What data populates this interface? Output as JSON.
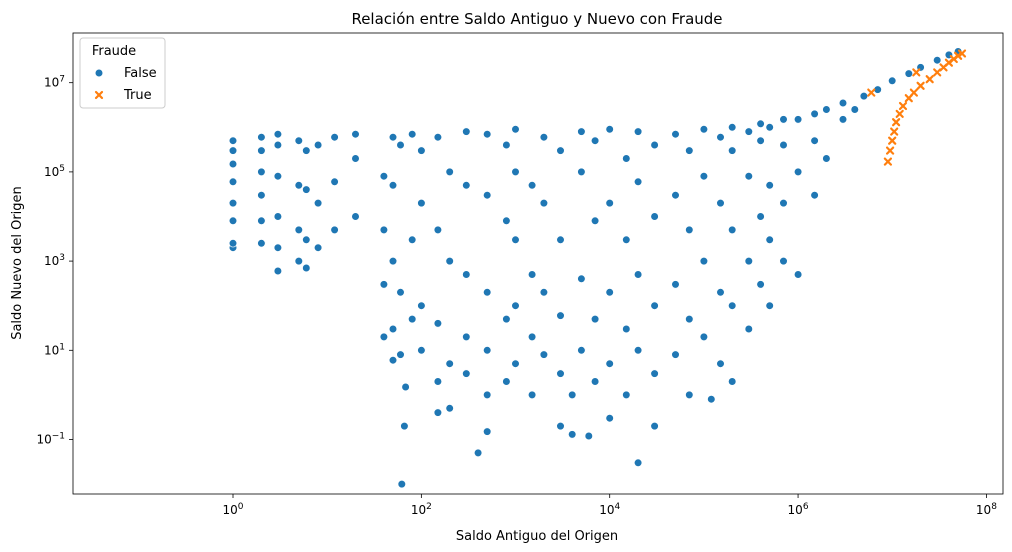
{
  "chart_data": {
    "type": "scatter",
    "title": "Relación entre Saldo Antiguo y Nuevo con Fraude",
    "xlabel": "Saldo Antiguo del Origen",
    "ylabel": "Saldo Nuevo del Origen",
    "xscale": "log",
    "yscale": "log",
    "xlim": [
      0.02,
      150000000
    ],
    "ylim": [
      0.006,
      130000000
    ],
    "xticks": [
      {
        "value": 1,
        "base": "10",
        "exp": "0"
      },
      {
        "value": 100,
        "base": "10",
        "exp": "2"
      },
      {
        "value": 10000,
        "base": "10",
        "exp": "4"
      },
      {
        "value": 1000000,
        "base": "10",
        "exp": "6"
      },
      {
        "value": 100000000,
        "base": "10",
        "exp": "8"
      }
    ],
    "yticks": [
      {
        "value": 0.1,
        "base": "10",
        "exp": "−1"
      },
      {
        "value": 10,
        "base": "10",
        "exp": "1"
      },
      {
        "value": 1000,
        "base": "10",
        "exp": "3"
      },
      {
        "value": 100000,
        "base": "10",
        "exp": "5"
      },
      {
        "value": 10000000,
        "base": "10",
        "exp": "7"
      }
    ],
    "grid": false,
    "legend": {
      "title": "Fraude",
      "placement": "top-left"
    },
    "series": [
      {
        "name": "False",
        "color": "#1f77b4",
        "marker": "circle",
        "points": [
          [
            1,
            2000
          ],
          [
            1,
            2500
          ],
          [
            1,
            8000
          ],
          [
            1,
            20000
          ],
          [
            1,
            60000
          ],
          [
            1,
            150000
          ],
          [
            1,
            300000
          ],
          [
            1,
            500000
          ],
          [
            2,
            2500
          ],
          [
            2,
            8000
          ],
          [
            2,
            30000
          ],
          [
            2,
            100000
          ],
          [
            2,
            300000
          ],
          [
            2,
            600000
          ],
          [
            3,
            600
          ],
          [
            3,
            2000
          ],
          [
            3,
            10000
          ],
          [
            3,
            80000
          ],
          [
            3,
            400000
          ],
          [
            3,
            700000
          ],
          [
            5,
            1000
          ],
          [
            5,
            5000
          ],
          [
            5,
            50000
          ],
          [
            5,
            500000
          ],
          [
            6,
            700
          ],
          [
            6,
            3000
          ],
          [
            6,
            40000
          ],
          [
            6,
            300000
          ],
          [
            8,
            2000
          ],
          [
            8,
            20000
          ],
          [
            8,
            400000
          ],
          [
            12,
            5000
          ],
          [
            12,
            60000
          ],
          [
            12,
            600000
          ],
          [
            20,
            10000
          ],
          [
            20,
            200000
          ],
          [
            20,
            700000
          ],
          [
            40,
            20
          ],
          [
            40,
            300
          ],
          [
            40,
            5000
          ],
          [
            40,
            80000
          ],
          [
            50,
            6
          ],
          [
            50,
            30
          ],
          [
            50,
            1000
          ],
          [
            50,
            50000
          ],
          [
            50,
            600000
          ],
          [
            60,
            8
          ],
          [
            60,
            200
          ],
          [
            60,
            400000
          ],
          [
            62,
            0.01
          ],
          [
            66,
            0.2
          ],
          [
            68,
            1.5
          ],
          [
            80,
            50
          ],
          [
            80,
            3000
          ],
          [
            80,
            700000
          ],
          [
            100,
            10
          ],
          [
            100,
            100
          ],
          [
            100,
            20000
          ],
          [
            100,
            300000
          ],
          [
            150,
            0.4
          ],
          [
            150,
            2
          ],
          [
            150,
            40
          ],
          [
            150,
            5000
          ],
          [
            150,
            600000
          ],
          [
            200,
            0.5
          ],
          [
            200,
            5
          ],
          [
            200,
            1000
          ],
          [
            200,
            100000
          ],
          [
            300,
            3
          ],
          [
            300,
            20
          ],
          [
            300,
            500
          ],
          [
            300,
            50000
          ],
          [
            300,
            800000
          ],
          [
            400,
            0.05
          ],
          [
            500,
            0.15
          ],
          [
            500,
            1
          ],
          [
            500,
            10
          ],
          [
            500,
            200
          ],
          [
            500,
            30000
          ],
          [
            500,
            700000
          ],
          [
            800,
            2
          ],
          [
            800,
            50
          ],
          [
            800,
            8000
          ],
          [
            800,
            400000
          ],
          [
            1000,
            5
          ],
          [
            1000,
            100
          ],
          [
            1000,
            3000
          ],
          [
            1000,
            100000
          ],
          [
            1000,
            900000
          ],
          [
            1500,
            1
          ],
          [
            1500,
            20
          ],
          [
            1500,
            500
          ],
          [
            1500,
            50000
          ],
          [
            2000,
            8
          ],
          [
            2000,
            200
          ],
          [
            2000,
            20000
          ],
          [
            2000,
            600000
          ],
          [
            3000,
            0.2
          ],
          [
            3000,
            3
          ],
          [
            3000,
            60
          ],
          [
            3000,
            3000
          ],
          [
            3000,
            300000
          ],
          [
            4000,
            0.13
          ],
          [
            4000,
            1
          ],
          [
            5000,
            10
          ],
          [
            5000,
            400
          ],
          [
            5000,
            100000
          ],
          [
            5000,
            800000
          ],
          [
            6000,
            0.12
          ],
          [
            7000,
            2
          ],
          [
            7000,
            50
          ],
          [
            7000,
            8000
          ],
          [
            7000,
            500000
          ],
          [
            10000,
            0.3
          ],
          [
            10000,
            5
          ],
          [
            10000,
            200
          ],
          [
            10000,
            20000
          ],
          [
            10000,
            900000
          ],
          [
            15000,
            1
          ],
          [
            15000,
            30
          ],
          [
            15000,
            3000
          ],
          [
            15000,
            200000
          ],
          [
            20000,
            0.03
          ],
          [
            20000,
            10
          ],
          [
            20000,
            500
          ],
          [
            20000,
            60000
          ],
          [
            20000,
            800000
          ],
          [
            30000,
            0.2
          ],
          [
            30000,
            3
          ],
          [
            30000,
            100
          ],
          [
            30000,
            10000
          ],
          [
            30000,
            400000
          ],
          [
            50000,
            8
          ],
          [
            50000,
            300
          ],
          [
            50000,
            30000
          ],
          [
            50000,
            700000
          ],
          [
            70000,
            1
          ],
          [
            70000,
            50
          ],
          [
            70000,
            5000
          ],
          [
            70000,
            300000
          ],
          [
            100000,
            20
          ],
          [
            100000,
            1000
          ],
          [
            100000,
            80000
          ],
          [
            100000,
            900000
          ],
          [
            120000,
            0.8
          ],
          [
            150000,
            5
          ],
          [
            150000,
            200
          ],
          [
            150000,
            20000
          ],
          [
            150000,
            600000
          ],
          [
            200000,
            2
          ],
          [
            200000,
            100
          ],
          [
            200000,
            5000
          ],
          [
            200000,
            300000
          ],
          [
            200000,
            1000000
          ],
          [
            300000,
            30
          ],
          [
            300000,
            1000
          ],
          [
            300000,
            80000
          ],
          [
            300000,
            800000
          ],
          [
            400000,
            300
          ],
          [
            400000,
            10000
          ],
          [
            400000,
            500000
          ],
          [
            400000,
            1200000
          ],
          [
            500000,
            100
          ],
          [
            500000,
            3000
          ],
          [
            500000,
            50000
          ],
          [
            500000,
            1000000
          ],
          [
            700000,
            1000
          ],
          [
            700000,
            20000
          ],
          [
            700000,
            400000
          ],
          [
            700000,
            1500000
          ],
          [
            1000000,
            500
          ],
          [
            1000000,
            100000
          ],
          [
            1000000,
            1500000
          ],
          [
            1500000,
            30000
          ],
          [
            1500000,
            500000
          ],
          [
            1500000,
            2000000
          ],
          [
            2000000,
            200000
          ],
          [
            2000000,
            2500000
          ],
          [
            3000000,
            1500000
          ],
          [
            3000000,
            3500000
          ],
          [
            4000000,
            2500000
          ],
          [
            5000000,
            5000000
          ],
          [
            7000000,
            7000000
          ],
          [
            10000000,
            11000000
          ],
          [
            15000000,
            16000000
          ],
          [
            20000000,
            22000000
          ],
          [
            30000000,
            32000000
          ],
          [
            40000000,
            42000000
          ],
          [
            50000000,
            50000000
          ]
        ]
      },
      {
        "name": "True",
        "color": "#ff7f0e",
        "marker": "x",
        "points": [
          [
            6000000,
            6000000
          ],
          [
            9000000,
            170000
          ],
          [
            9500000,
            300000
          ],
          [
            10000000,
            500000
          ],
          [
            10500000,
            800000
          ],
          [
            11000000,
            1300000
          ],
          [
            12000000,
            2000000
          ],
          [
            13000000,
            3000000
          ],
          [
            15000000,
            4500000
          ],
          [
            17000000,
            6000000
          ],
          [
            18000000,
            17000000
          ],
          [
            20000000,
            8500000
          ],
          [
            25000000,
            12000000
          ],
          [
            30000000,
            17000000
          ],
          [
            35000000,
            22000000
          ],
          [
            40000000,
            28000000
          ],
          [
            45000000,
            34000000
          ],
          [
            50000000,
            40000000
          ],
          [
            55000000,
            45000000
          ]
        ]
      }
    ]
  }
}
